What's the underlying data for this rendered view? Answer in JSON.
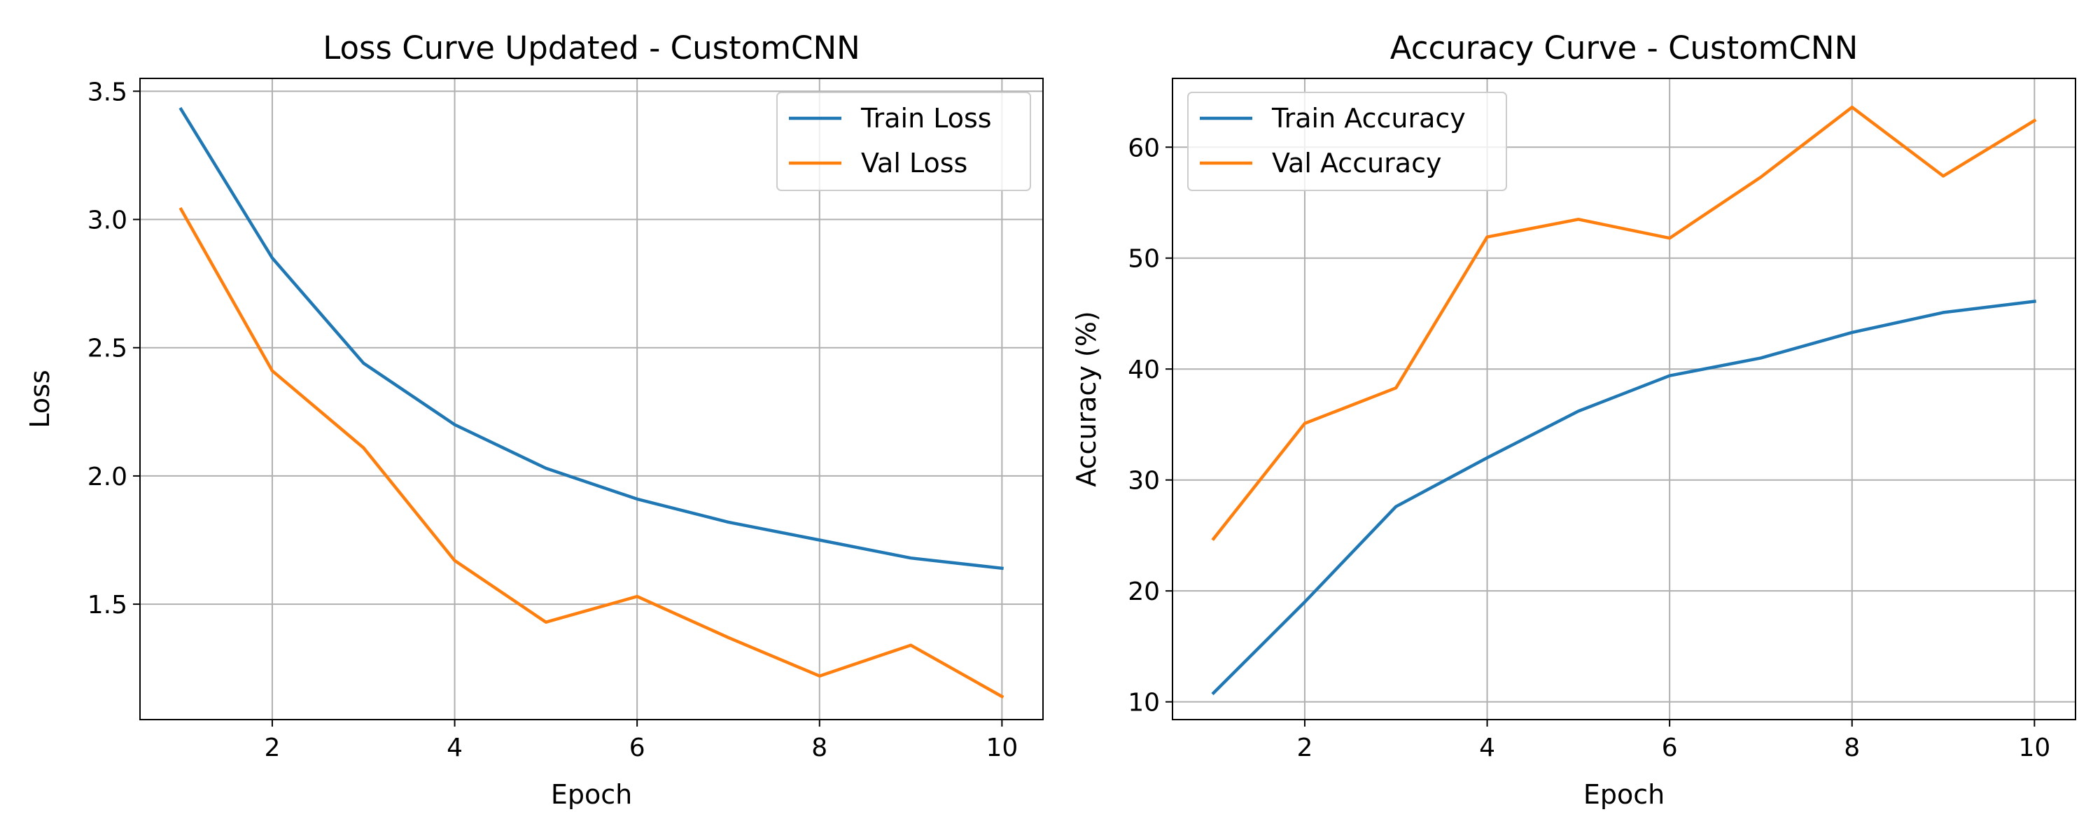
{
  "chart_data": [
    {
      "type": "line",
      "title": "Loss Curve Updated - CustomCNN",
      "xlabel": "Epoch",
      "ylabel": "Loss",
      "x": [
        1,
        2,
        3,
        4,
        5,
        6,
        7,
        8,
        9,
        10
      ],
      "xlim": [
        0.55,
        10.45
      ],
      "ylim": [
        1.05,
        3.55
      ],
      "xticks": [
        2,
        4,
        6,
        8,
        10
      ],
      "yticks": [
        1.5,
        2.0,
        2.5,
        3.0,
        3.5
      ],
      "xtick_labels": [
        "2",
        "4",
        "6",
        "8",
        "10"
      ],
      "ytick_labels": [
        "1.5",
        "2.0",
        "2.5",
        "3.0",
        "3.5"
      ],
      "grid": true,
      "legend_position": "upper-right",
      "series": [
        {
          "name": "Train Loss",
          "color": "#1f77b4",
          "values": [
            3.43,
            2.85,
            2.44,
            2.2,
            2.03,
            1.91,
            1.82,
            1.75,
            1.68,
            1.64
          ]
        },
        {
          "name": "Val Loss",
          "color": "#ff7f0e",
          "values": [
            3.04,
            2.41,
            2.11,
            1.67,
            1.43,
            1.53,
            1.37,
            1.22,
            1.34,
            1.14
          ]
        }
      ]
    },
    {
      "type": "line",
      "title": "Accuracy Curve - CustomCNN",
      "xlabel": "Epoch",
      "ylabel": "Accuracy (%)",
      "x": [
        1,
        2,
        3,
        4,
        5,
        6,
        7,
        8,
        9,
        10
      ],
      "xlim": [
        0.55,
        10.45
      ],
      "ylim": [
        8.4,
        66.2
      ],
      "xticks": [
        2,
        4,
        6,
        8,
        10
      ],
      "yticks": [
        10,
        20,
        30,
        40,
        50,
        60
      ],
      "xtick_labels": [
        "2",
        "4",
        "6",
        "8",
        "10"
      ],
      "ytick_labels": [
        "10",
        "20",
        "30",
        "40",
        "50",
        "60"
      ],
      "grid": true,
      "legend_position": "upper-left",
      "series": [
        {
          "name": "Train Accuracy",
          "color": "#1f77b4",
          "values": [
            10.8,
            19.0,
            27.6,
            32.0,
            36.2,
            39.4,
            41.0,
            43.3,
            45.1,
            46.1
          ]
        },
        {
          "name": "Val Accuracy",
          "color": "#ff7f0e",
          "values": [
            24.7,
            35.1,
            38.3,
            51.9,
            53.5,
            51.8,
            57.3,
            63.6,
            57.4,
            62.4
          ]
        }
      ]
    }
  ]
}
